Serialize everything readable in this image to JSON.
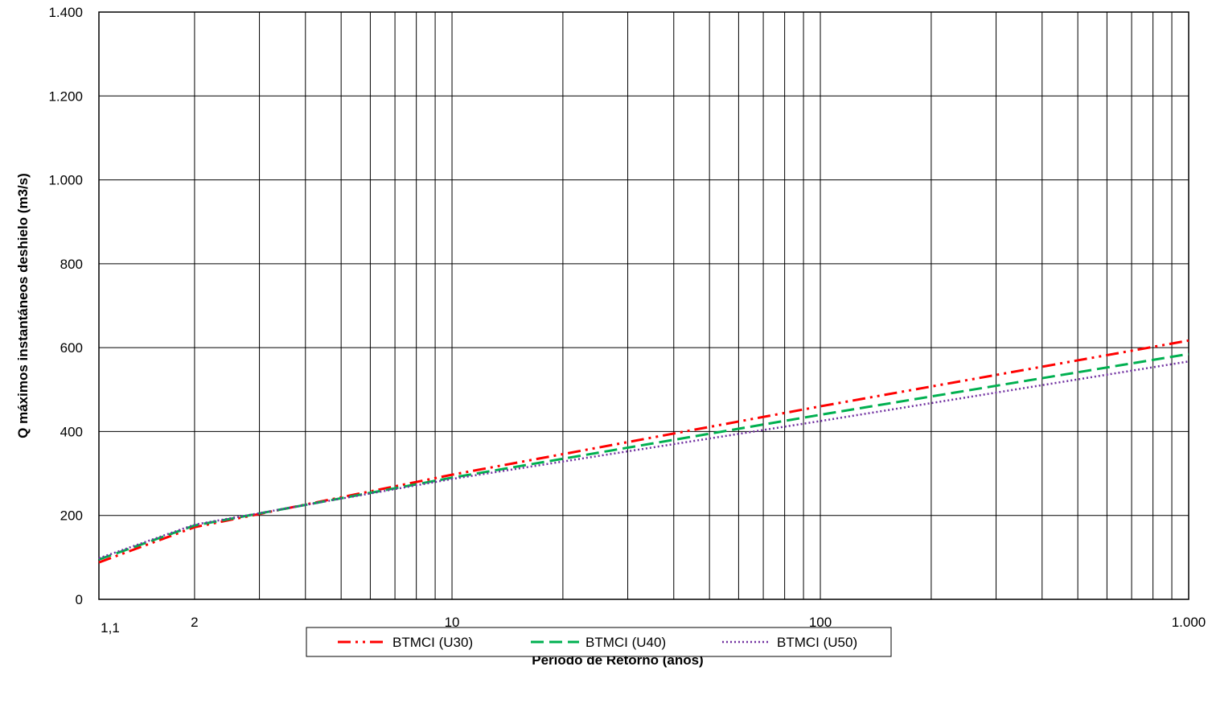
{
  "chart_data": {
    "type": "line",
    "xscale": "log",
    "xlim": [
      1.1,
      1000
    ],
    "ylim": [
      0,
      1400
    ],
    "grid": true,
    "xlabel": "Período de Retorno (años)",
    "ylabel": "Q máximos instantáneos deshielo (m3/s)",
    "xticks": [
      1.1,
      2,
      10,
      100,
      1000
    ],
    "xtick_labels": [
      "1,1",
      "2",
      "10",
      "100",
      "1.000"
    ],
    "yticks": [
      0,
      200,
      400,
      600,
      800,
      1000,
      1200,
      1400
    ],
    "ytick_labels": [
      "0",
      "200",
      "400",
      "600",
      "800",
      "1.000",
      "1.200",
      "1.400"
    ],
    "legend_position": "bottom",
    "series": [
      {
        "name": "BTMCI (U30)",
        "color": "#ff0000",
        "dash": "long-dash-dot-dot",
        "x": [
          1.1,
          2,
          10,
          100,
          1000
        ],
        "y": [
          88,
          172,
          297,
          460,
          617
        ]
      },
      {
        "name": "BTMCI (U40)",
        "color": "#00b050",
        "dash": "long-dash",
        "x": [
          1.1,
          2,
          10,
          100,
          1000
        ],
        "y": [
          95,
          176,
          290,
          440,
          585
        ]
      },
      {
        "name": "BTMCI (U50)",
        "color": "#7030a0",
        "dash": "dotted",
        "x": [
          1.1,
          2,
          10,
          100,
          1000
        ],
        "y": [
          98,
          178,
          287,
          425,
          567
        ]
      }
    ]
  }
}
